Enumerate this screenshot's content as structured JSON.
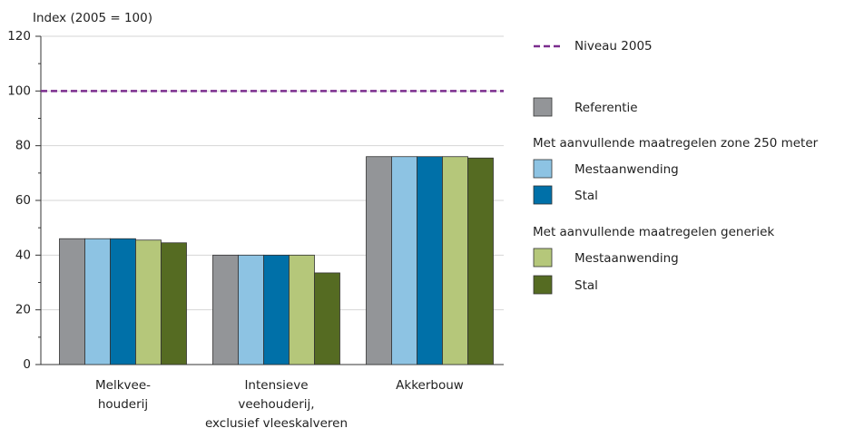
{
  "chart_data": {
    "type": "bar",
    "y_label": "Index (2005 = 100)",
    "categories": [
      [
        "Melkvee-",
        "houderij"
      ],
      [
        "Intensieve",
        "veehouderij,",
        "exclusief vleeskalveren"
      ],
      [
        "Akkerbouw"
      ]
    ],
    "series": [
      {
        "name": "Referentie",
        "color": "#939598",
        "values": [
          46,
          40,
          76
        ]
      },
      {
        "name": "Mestaanwending",
        "color": "#8dc3e3",
        "values": [
          46,
          40,
          76
        ]
      },
      {
        "name": "Stal",
        "color": "#0070a8",
        "values": [
          46,
          40,
          76
        ]
      },
      {
        "name": "Mestaanwending",
        "color": "#b5c77a",
        "values": [
          45.5,
          40,
          76
        ]
      },
      {
        "name": "Stal",
        "color": "#556b22",
        "values": [
          44.5,
          33.5,
          75.5
        ]
      }
    ],
    "legend_headings": [
      "Met aanvullende maatregelen zone 250 meter",
      "Met aanvullende maatregelen generiek"
    ],
    "reference_line": {
      "name": "Niveau 2005",
      "value": 100,
      "color": "#7b2d8e"
    },
    "ylim": [
      0,
      120
    ],
    "yticks": [
      0,
      20,
      40,
      60,
      80,
      100,
      120
    ],
    "yminor_ticks": [
      10,
      30,
      50,
      70,
      90,
      110
    ],
    "grid": true
  }
}
